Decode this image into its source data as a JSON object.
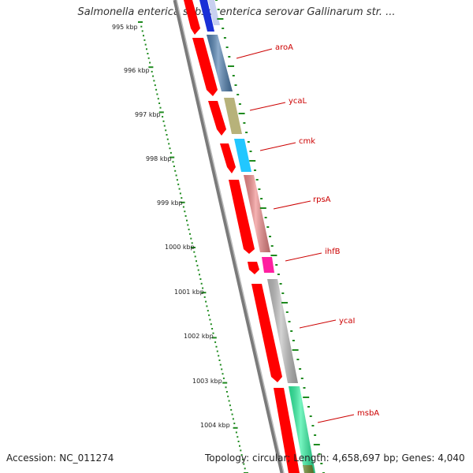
{
  "title": "Salmonella enterica subsp. enterica serovar Gallinarum str. ...",
  "footer": {
    "accession": "Accession: NC_011274",
    "summary": "Topology: circular; Length: 4,658,697 bp; Genes: 4,040"
  },
  "colors": {
    "backbone": "#7a7a7a",
    "ticks": "#1e8a1e",
    "cds": "#ff0000",
    "label": "#cc0000"
  },
  "tick_labels": [
    "995 kbp",
    "996 kbp",
    "997 kbp",
    "998 kbp",
    "999 kbp",
    "1000 kbp",
    "1001 kbp",
    "1002 kbp",
    "1003 kbp",
    "1004 kbp"
  ],
  "genes": [
    {
      "name": "aroA",
      "color": "#4f7fb0"
    },
    {
      "name": "ycaL",
      "color": "#b7b27a"
    },
    {
      "name": "cmk",
      "color": "#22c7ff"
    },
    {
      "name": "rpsA",
      "color": "#f08a8a"
    },
    {
      "name": "ihfB",
      "color": "#ff1fa0"
    },
    {
      "name": "ycaI",
      "color": "#bcbcbc"
    },
    {
      "name": "msbA",
      "color": "#2ef2a0"
    }
  ]
}
